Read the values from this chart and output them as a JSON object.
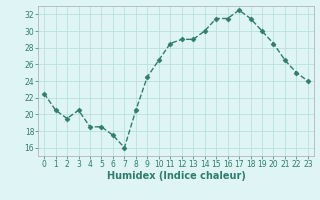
{
  "x": [
    0,
    1,
    2,
    3,
    4,
    5,
    6,
    7,
    8,
    9,
    10,
    11,
    12,
    13,
    14,
    15,
    16,
    17,
    18,
    19,
    20,
    21,
    22,
    23
  ],
  "y": [
    22.5,
    20.5,
    19.5,
    20.5,
    18.5,
    18.5,
    17.5,
    16.0,
    20.5,
    24.5,
    26.5,
    28.5,
    29.0,
    29.0,
    30.0,
    31.5,
    31.5,
    32.5,
    31.5,
    30.0,
    28.5,
    26.5,
    25.0,
    24.0
  ],
  "line_color": "#2e7d6e",
  "marker": "D",
  "markersize": 2.5,
  "linewidth": 1.0,
  "bg_color": "#dff5f5",
  "grid_color": "#b8e0e0",
  "xlabel": "Humidex (Indice chaleur)",
  "xlabel_fontsize": 7,
  "ylim": [
    15,
    33
  ],
  "yticks": [
    16,
    18,
    20,
    22,
    24,
    26,
    28,
    30,
    32
  ],
  "xticks": [
    0,
    1,
    2,
    3,
    4,
    5,
    6,
    7,
    8,
    9,
    10,
    11,
    12,
    13,
    14,
    15,
    16,
    17,
    18,
    19,
    20,
    21,
    22,
    23
  ],
  "tick_fontsize": 5.5
}
